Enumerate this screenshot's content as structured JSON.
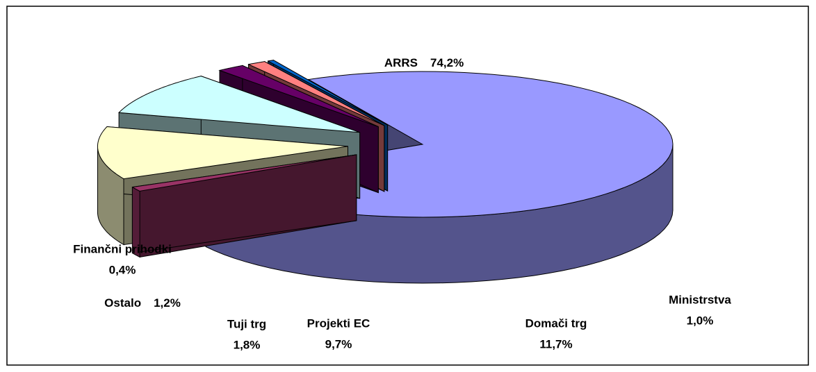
{
  "chart_data": {
    "type": "pie3d",
    "categories": [
      "ARRS",
      "Ministrstva",
      "Domači trg",
      "Projekti EC",
      "Tuji trg",
      "Ostalo",
      "Finančni prihodki"
    ],
    "values": [
      74.2,
      1.0,
      11.7,
      9.7,
      1.8,
      1.2,
      0.4
    ],
    "value_labels": [
      "74,2%",
      "1,0%",
      "11,7%",
      "9,7%",
      "1,8%",
      "1,2%",
      "0,4%"
    ],
    "colors": [
      "#9999ff",
      "#993366",
      "#ffffcc",
      "#ccffff",
      "#660066",
      "#ff8080",
      "#0066cc"
    ]
  }
}
